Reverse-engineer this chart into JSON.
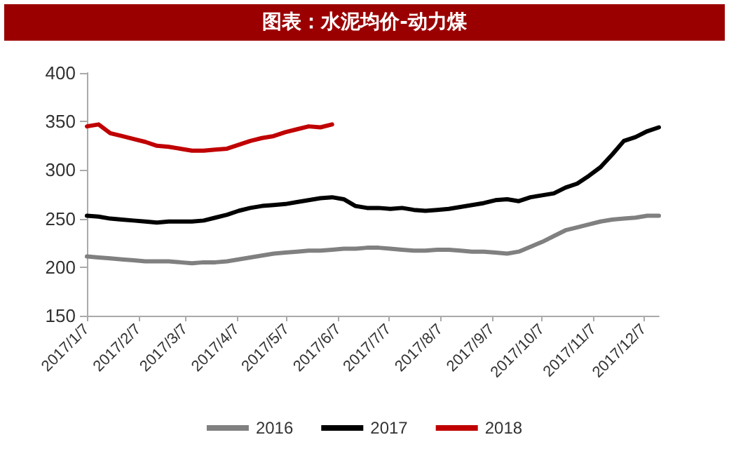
{
  "chart_data": {
    "type": "line",
    "title": "图表：水泥均价-动力煤",
    "x": [
      "2017-01-07",
      "2017-01-14",
      "2017-01-21",
      "2017-01-28",
      "2017-02-04",
      "2017-02-11",
      "2017-02-18",
      "2017-02-25",
      "2017-03-04",
      "2017-03-11",
      "2017-03-18",
      "2017-03-25",
      "2017-04-01",
      "2017-04-08",
      "2017-04-15",
      "2017-04-22",
      "2017-04-29",
      "2017-05-06",
      "2017-05-13",
      "2017-05-20",
      "2017-05-27",
      "2017-06-03",
      "2017-06-10",
      "2017-06-17",
      "2017-06-24",
      "2017-07-01",
      "2017-07-08",
      "2017-07-15",
      "2017-07-22",
      "2017-07-29",
      "2017-08-05",
      "2017-08-12",
      "2017-08-19",
      "2017-08-26",
      "2017-09-02",
      "2017-09-09",
      "2017-09-16",
      "2017-09-23",
      "2017-09-30",
      "2017-10-07",
      "2017-10-14",
      "2017-10-21",
      "2017-10-28",
      "2017-11-04",
      "2017-11-11",
      "2017-11-18",
      "2017-11-25",
      "2017-12-02",
      "2017-12-09",
      "2017-12-16"
    ],
    "series": [
      {
        "name": "2016",
        "color": "#808080",
        "values": [
          211,
          210,
          209,
          208,
          207,
          206,
          206,
          206,
          205,
          204,
          205,
          205,
          206,
          208,
          210,
          212,
          214,
          215,
          216,
          217,
          217,
          218,
          219,
          219,
          220,
          220,
          219,
          218,
          217,
          217,
          218,
          218,
          217,
          216,
          216,
          215,
          214,
          216,
          221,
          226,
          232,
          238,
          241,
          244,
          247,
          249,
          250,
          251,
          253,
          253
        ]
      },
      {
        "name": "2017",
        "color": "#000000",
        "values": [
          253,
          252,
          250,
          249,
          248,
          247,
          246,
          247,
          247,
          247,
          248,
          251,
          254,
          258,
          261,
          263,
          264,
          265,
          267,
          269,
          271,
          272,
          270,
          263,
          261,
          261,
          260,
          261,
          259,
          258,
          259,
          260,
          262,
          264,
          266,
          269,
          270,
          268,
          272,
          274,
          276,
          282,
          286,
          294,
          303,
          316,
          330,
          334,
          340,
          344
        ]
      },
      {
        "name": "2018",
        "color": "#c00000",
        "values": [
          345,
          347,
          338,
          335,
          332,
          329,
          325,
          324,
          322,
          320,
          320,
          321,
          322,
          326,
          330,
          333,
          335,
          339,
          342,
          345,
          344,
          347,
          null,
          null,
          null,
          null,
          null,
          null,
          null,
          null,
          null,
          null,
          null,
          null,
          null,
          null,
          null,
          null,
          null,
          null,
          null,
          null,
          null,
          null,
          null,
          null,
          null,
          null,
          null,
          null
        ]
      }
    ],
    "xlim": [
      "2017-01-07",
      "2017-12-16"
    ],
    "xticks": [
      {
        "value": "2017-01-07",
        "label": "2017/1/7"
      },
      {
        "value": "2017-02-07",
        "label": "2017/2/7"
      },
      {
        "value": "2017-03-07",
        "label": "2017/3/7"
      },
      {
        "value": "2017-04-07",
        "label": "2017/4/7"
      },
      {
        "value": "2017-05-07",
        "label": "2017/5/7"
      },
      {
        "value": "2017-06-07",
        "label": "2017/6/7"
      },
      {
        "value": "2017-07-07",
        "label": "2017/7/7"
      },
      {
        "value": "2017-08-07",
        "label": "2017/8/7"
      },
      {
        "value": "2017-09-07",
        "label": "2017/9/7"
      },
      {
        "value": "2017-10-07",
        "label": "2017/10/7"
      },
      {
        "value": "2017-11-07",
        "label": "2017/11/7"
      },
      {
        "value": "2017-12-07",
        "label": "2017/12/7"
      }
    ],
    "ylim": [
      150,
      400
    ],
    "yticks": [
      150,
      200,
      250,
      300,
      350,
      400
    ],
    "grid": false,
    "legend": "bottom",
    "marker": "none",
    "line_style": "solid"
  }
}
